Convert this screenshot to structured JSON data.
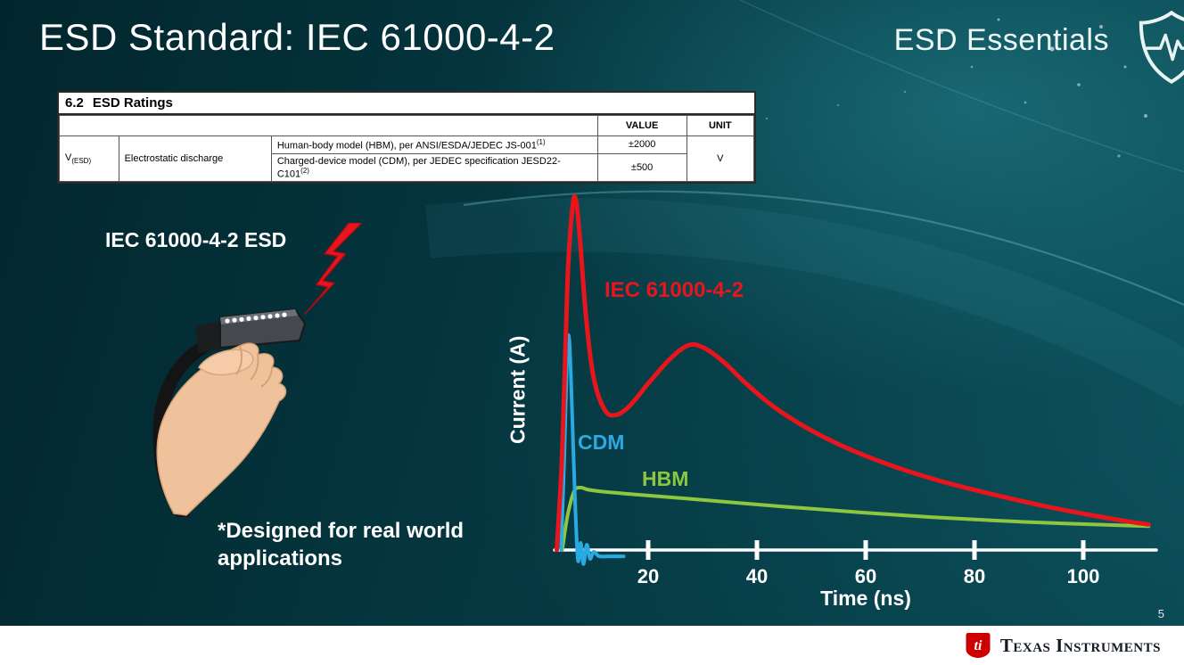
{
  "slide": {
    "title": "ESD Standard: IEC 61000-4-2",
    "series_brand": "ESD Essentials",
    "page_number": "5",
    "footer_brand": "Texas Instruments"
  },
  "ratings_table": {
    "section_no": "6.2",
    "heading": "ESD Ratings",
    "col_value": "VALUE",
    "col_unit": "UNIT",
    "param_symbol": "V",
    "param_sub": "(ESD)",
    "param_name": "Electrostatic discharge",
    "unit": "V",
    "rows": [
      {
        "desc": "Human-body model (HBM), per ANSI/ESDA/JEDEC JS-001",
        "sup": "(1)",
        "value": "±2000"
      },
      {
        "desc": "Charged-device model (CDM), per JEDEC specification JESD22-C101",
        "sup": "(2)",
        "value": "±500"
      }
    ]
  },
  "left_panel": {
    "caption": "IEC 61000-4-2 ESD",
    "note_line1": "*Designed for real world",
    "note_line2": "applications"
  },
  "chart_data": {
    "type": "line",
    "title": "",
    "xlabel": "Time (ns)",
    "ylabel": "Current (A)",
    "x_ticks": [
      20,
      40,
      60,
      80,
      100
    ],
    "x_range": [
      0,
      112
    ],
    "y_range_relative": [
      0,
      1
    ],
    "grid": false,
    "legend_position": "inline-labels",
    "series": [
      {
        "name": "IEC 61000-4-2",
        "color": "#e8151d",
        "points": [
          [
            3.2,
            0
          ],
          [
            4.2,
            0.28
          ],
          [
            5.2,
            0.78
          ],
          [
            6.1,
            0.98
          ],
          [
            6.7,
            1.0
          ],
          [
            7.4,
            0.9
          ],
          [
            8.6,
            0.66
          ],
          [
            10,
            0.49
          ],
          [
            12,
            0.4
          ],
          [
            14,
            0.385
          ],
          [
            16.5,
            0.41
          ],
          [
            20,
            0.475
          ],
          [
            24,
            0.545
          ],
          [
            27.5,
            0.585
          ],
          [
            30.5,
            0.575
          ],
          [
            34,
            0.535
          ],
          [
            38,
            0.475
          ],
          [
            43,
            0.41
          ],
          [
            49,
            0.35
          ],
          [
            56,
            0.295
          ],
          [
            64,
            0.245
          ],
          [
            73,
            0.2
          ],
          [
            83,
            0.16
          ],
          [
            93,
            0.125
          ],
          [
            102,
            0.098
          ],
          [
            108,
            0.082
          ],
          [
            112,
            0.073
          ]
        ]
      },
      {
        "name": "CDM",
        "color": "#29abe2",
        "points": [
          [
            4.0,
            0
          ],
          [
            4.6,
            0.28
          ],
          [
            5.1,
            0.56
          ],
          [
            5.5,
            0.6
          ],
          [
            6.0,
            0.4
          ],
          [
            6.6,
            0.12
          ],
          [
            7.1,
            -0.03
          ],
          [
            7.6,
            0.02
          ],
          [
            8.1,
            -0.04
          ],
          [
            8.7,
            0.015
          ],
          [
            9.3,
            -0.025
          ],
          [
            10,
            -0.005
          ],
          [
            11,
            -0.018
          ],
          [
            13,
            -0.018
          ],
          [
            15.5,
            -0.018
          ]
        ]
      },
      {
        "name": "HBM",
        "color": "#8dc63f",
        "points": [
          [
            4.2,
            0
          ],
          [
            5.2,
            0.1
          ],
          [
            6.4,
            0.168
          ],
          [
            7.6,
            0.178
          ],
          [
            9,
            0.172
          ],
          [
            12,
            0.166
          ],
          [
            18,
            0.158
          ],
          [
            26,
            0.148
          ],
          [
            36,
            0.135
          ],
          [
            48,
            0.12
          ],
          [
            60,
            0.106
          ],
          [
            72,
            0.094
          ],
          [
            84,
            0.084
          ],
          [
            96,
            0.076
          ],
          [
            106,
            0.071
          ],
          [
            112,
            0.068
          ]
        ]
      }
    ]
  }
}
